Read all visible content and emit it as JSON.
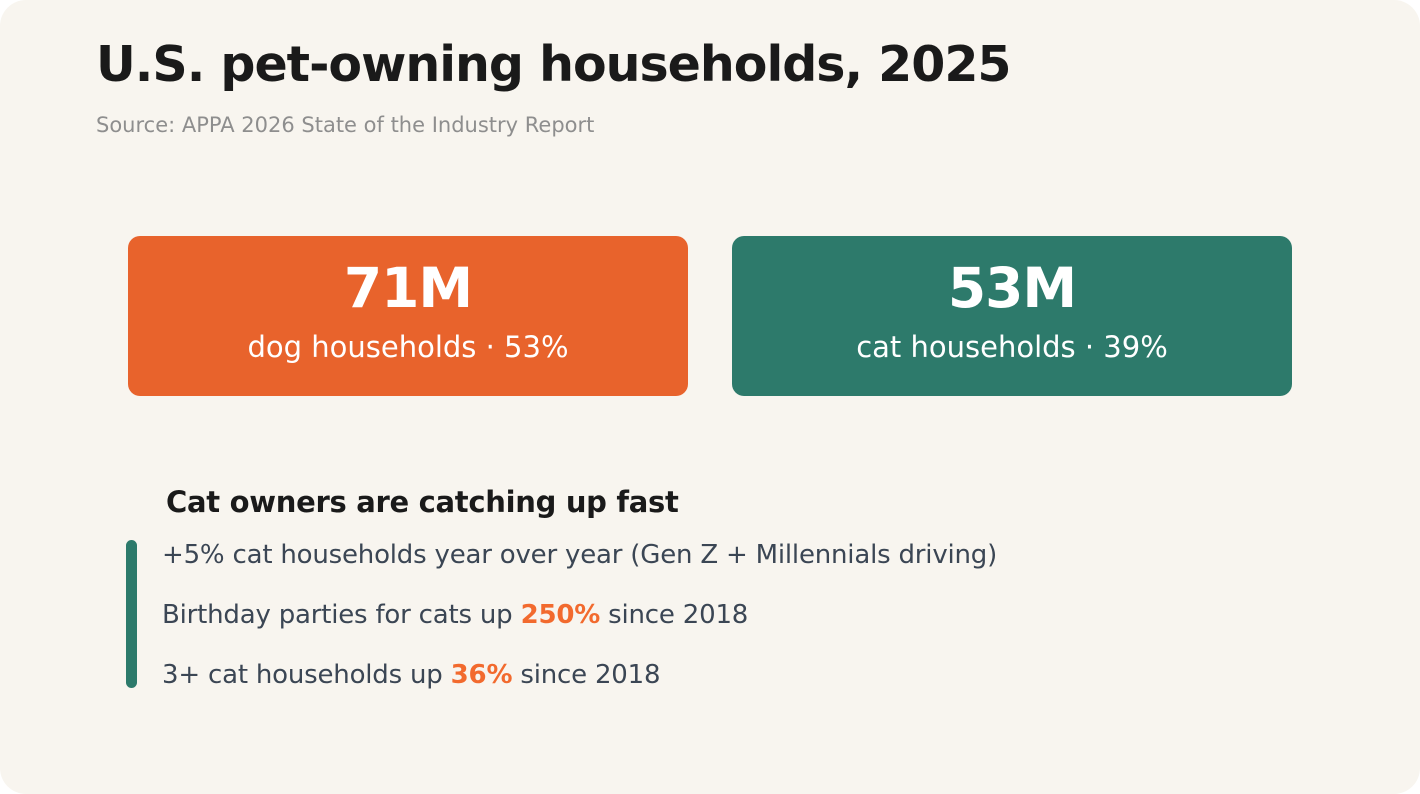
{
  "title": "U.S. pet-owning households, 2025",
  "subtitle": "Source: APPA 2026 State of the Industry Report",
  "stats": {
    "dog": {
      "value": "71M",
      "caption": "dog households · 53%",
      "color": "#e8632c"
    },
    "cat": {
      "value": "53M",
      "caption": "cat households · 39%",
      "color": "#2d7a6b"
    }
  },
  "section": {
    "heading": "Cat owners are catching up fast",
    "accent_color": "#2d7a6b",
    "highlight_color": "#f26a2e",
    "bullets": [
      {
        "text": "+5% cat households year over year (Gen Z + Millennials driving)"
      },
      {
        "before": "Birthday parties for cats up ",
        "highlight": "250%",
        "after": " since 2018"
      },
      {
        "before": "3+ cat households up ",
        "highlight": "36%",
        "after": " since 2018"
      }
    ]
  }
}
